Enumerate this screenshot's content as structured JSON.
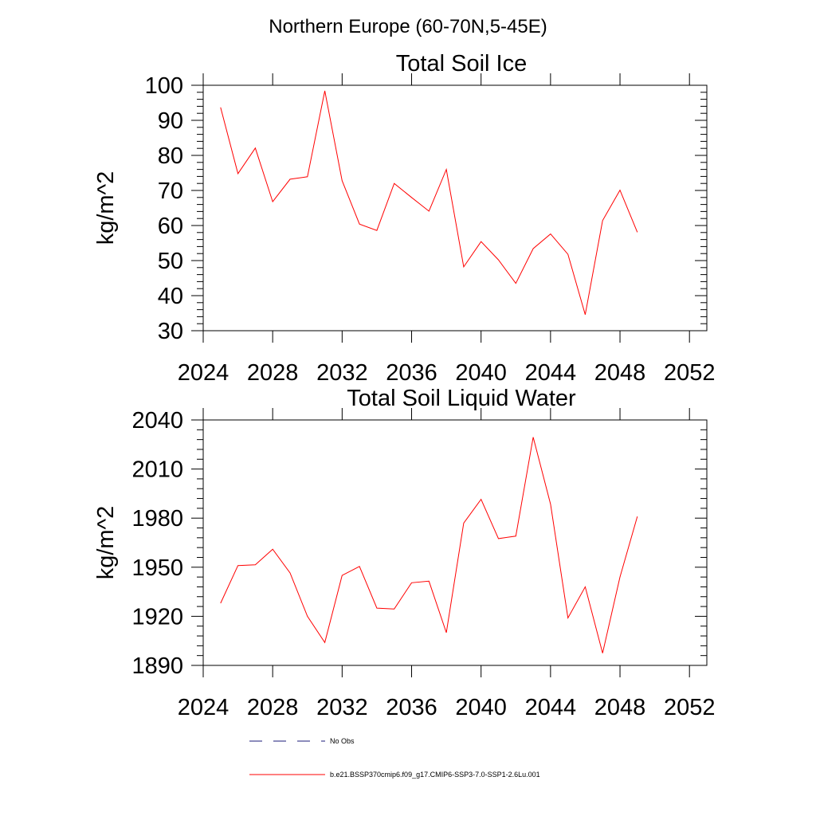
{
  "figure_title": "Northern Europe (60-70N,5-45E)",
  "legend": [
    {
      "label": "No Obs",
      "style": "dashed",
      "color": "#1a1a7a"
    },
    {
      "label": "b.e21.BSSP370cmip6.f09_g17.CMIP6-SSP3-7.0-SSP1-2.6Lu.001",
      "style": "solid",
      "color": "#ff0000"
    }
  ],
  "chart_data": [
    {
      "type": "line",
      "title": "Total Soil Ice",
      "xlabel": "",
      "ylabel": "kg/m^2",
      "xlim": [
        2024,
        2053
      ],
      "ylim": [
        30,
        100
      ],
      "x_ticks": [
        2024,
        2028,
        2032,
        2036,
        2040,
        2044,
        2048,
        2052
      ],
      "y_ticks": [
        30,
        40,
        50,
        60,
        70,
        80,
        90,
        100
      ],
      "grid": false,
      "series": [
        {
          "color": "#ff0000",
          "x": [
            2025,
            2026,
            2027,
            2028,
            2029,
            2030,
            2031,
            2032,
            2033,
            2034,
            2035,
            2036,
            2037,
            2038,
            2039,
            2040,
            2041,
            2042,
            2043,
            2044,
            2045,
            2046,
            2047,
            2048,
            2049
          ],
          "values": [
            93.7,
            74.8,
            82.1,
            66.8,
            73.2,
            73.9,
            98.4,
            72.8,
            60.4,
            58.6,
            72.0,
            68.0,
            64.1,
            76.0,
            48.2,
            55.4,
            50.2,
            43.5,
            53.4,
            57.6,
            51.8,
            34.6,
            61.4,
            70.1,
            58.1
          ]
        }
      ]
    },
    {
      "type": "line",
      "title": "Total Soil Liquid Water",
      "xlabel": "",
      "ylabel": "kg/m^2",
      "xlim": [
        2024,
        2053
      ],
      "ylim": [
        1890,
        2040
      ],
      "x_ticks": [
        2024,
        2028,
        2032,
        2036,
        2040,
        2044,
        2048,
        2052
      ],
      "y_ticks": [
        1890,
        1920,
        1950,
        1980,
        2010,
        2040
      ],
      "grid": false,
      "series": [
        {
          "color": "#ff0000",
          "x": [
            2025,
            2026,
            2027,
            2028,
            2029,
            2030,
            2031,
            2032,
            2033,
            2034,
            2035,
            2036,
            2037,
            2038,
            2039,
            2040,
            2041,
            2042,
            2043,
            2044,
            2045,
            2046,
            2047,
            2048,
            2049
          ],
          "values": [
            1928,
            1951,
            1951.5,
            1961,
            1946.5,
            1920,
            1904,
            1945,
            1950.5,
            1925,
            1924.5,
            1940.5,
            1941.5,
            1910,
            1977,
            1991.5,
            1967.5,
            1969,
            2029.5,
            1988.5,
            1919,
            1938,
            1897.5,
            1944,
            1981
          ]
        }
      ]
    }
  ]
}
